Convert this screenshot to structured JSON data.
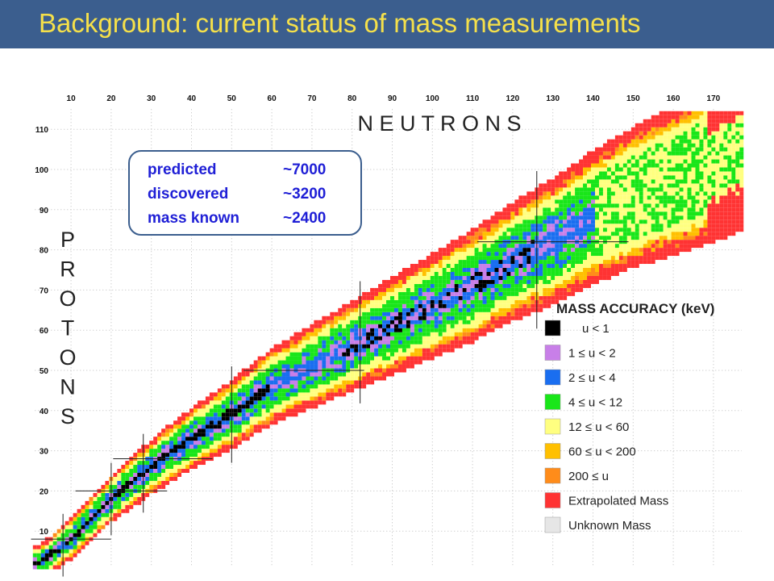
{
  "header": {
    "title": "Background:  current status of mass measurements"
  },
  "info_box": {
    "rows": [
      {
        "label": "predicted",
        "value": "~7000"
      },
      {
        "label": "discovered",
        "value": "~3200"
      },
      {
        "label": "mass known",
        "value": "~2400"
      }
    ]
  },
  "colors": {
    "title_bar": "#3b5e8e",
    "title_text": "#f5e04a",
    "info_text": "#1f1fd6"
  },
  "chart_data": {
    "type": "heatmap",
    "x_axis": {
      "title": "N E U T R O N S",
      "ticks": [
        10,
        20,
        30,
        40,
        50,
        60,
        70,
        80,
        90,
        100,
        110,
        120,
        130,
        140,
        150,
        160,
        170
      ],
      "range": [
        0,
        177
      ]
    },
    "y_axis": {
      "title": "P R O T O N S",
      "ticks": [
        10,
        20,
        30,
        40,
        50,
        60,
        70,
        80,
        90,
        100,
        110
      ],
      "range": [
        0,
        115
      ]
    },
    "grid": true,
    "legend": {
      "title": "MASS ACCURACY (keV)",
      "placement": "bottom-right",
      "entries": [
        {
          "label": "u  <  1",
          "color": "#000000"
        },
        {
          "label": "1 ≤  u  <  2",
          "color": "#c87fe8"
        },
        {
          "label": "2 ≤  u  <  4",
          "color": "#1a6ef0"
        },
        {
          "label": "4 ≤  u  <  12",
          "color": "#19e619"
        },
        {
          "label": "12 ≤  u  <  60",
          "color": "#ffff80"
        },
        {
          "label": "60 ≤  u  < 200",
          "color": "#ffc000"
        },
        {
          "label": "200 ≤  u",
          "color": "#ff8c1a"
        },
        {
          "label": "Extrapolated Mass",
          "color": "#ff3333"
        },
        {
          "label": "Unknown Mass",
          "color": "#e6e6e6"
        }
      ]
    },
    "magic_numbers": [
      8,
      20,
      28,
      50,
      82,
      126
    ],
    "stability_line": [
      [
        2,
        2
      ],
      [
        10,
        8
      ],
      [
        20,
        18
      ],
      [
        30,
        26
      ],
      [
        40,
        33
      ],
      [
        50,
        39
      ],
      [
        60,
        46
      ],
      [
        70,
        51
      ],
      [
        80,
        56
      ],
      [
        90,
        61
      ],
      [
        100,
        66
      ],
      [
        110,
        71
      ],
      [
        120,
        77
      ],
      [
        130,
        82
      ],
      [
        140,
        88
      ],
      [
        150,
        93
      ],
      [
        160,
        97
      ],
      [
        170,
        101
      ],
      [
        176,
        104
      ]
    ]
  }
}
